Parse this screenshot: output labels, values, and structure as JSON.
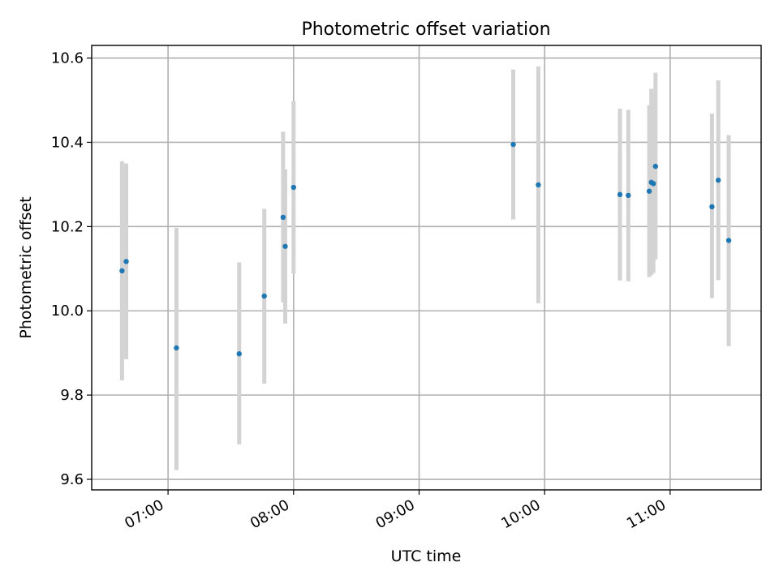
{
  "chart_data": {
    "type": "scatter",
    "title": "Photometric offset variation",
    "xlabel": "UTC time",
    "ylabel": "Photometric offset",
    "x_tick_labels": [
      "07:00",
      "08:00",
      "09:00",
      "10:00",
      "11:00"
    ],
    "x_ticks_minutes": [
      420,
      480,
      540,
      600,
      660
    ],
    "y_ticks": [
      9.6,
      9.8,
      10.0,
      10.2,
      10.4,
      10.6
    ],
    "y_tick_labels": [
      "9.6",
      "9.8",
      "10.0",
      "10.2",
      "10.4",
      "10.6"
    ],
    "xlim_minutes": [
      383.5,
      703.5
    ],
    "ylim": [
      9.575,
      10.63
    ],
    "grid": true,
    "point_color": "#1f77b4",
    "errorbar_color": "#d3d3d3",
    "points": [
      {
        "t": "06:38",
        "y": 10.095,
        "ylow": 9.835,
        "yhigh": 10.355
      },
      {
        "t": "06:40",
        "y": 10.117,
        "ylow": 9.885,
        "yhigh": 10.35
      },
      {
        "t": "07:04",
        "y": 9.912,
        "ylow": 9.622,
        "yhigh": 10.197
      },
      {
        "t": "07:34",
        "y": 9.898,
        "ylow": 9.683,
        "yhigh": 10.115
      },
      {
        "t": "07:46",
        "y": 10.035,
        "ylow": 9.827,
        "yhigh": 10.242
      },
      {
        "t": "07:55",
        "y": 10.222,
        "ylow": 10.02,
        "yhigh": 10.425
      },
      {
        "t": "07:56",
        "y": 10.153,
        "ylow": 9.97,
        "yhigh": 10.336
      },
      {
        "t": "08:00",
        "y": 10.293,
        "ylow": 10.088,
        "yhigh": 10.498
      },
      {
        "t": "09:45",
        "y": 10.395,
        "ylow": 10.217,
        "yhigh": 10.573
      },
      {
        "t": "09:57",
        "y": 10.299,
        "ylow": 10.018,
        "yhigh": 10.58
      },
      {
        "t": "10:36",
        "y": 10.276,
        "ylow": 10.072,
        "yhigh": 10.48
      },
      {
        "t": "10:40",
        "y": 10.274,
        "ylow": 10.07,
        "yhigh": 10.477
      },
      {
        "t": "10:50",
        "y": 10.284,
        "ylow": 10.08,
        "yhigh": 10.488
      },
      {
        "t": "10:51",
        "y": 10.305,
        "ylow": 10.085,
        "yhigh": 10.527
      },
      {
        "t": "10:52",
        "y": 10.302,
        "ylow": 10.09,
        "yhigh": 10.515
      },
      {
        "t": "10:53",
        "y": 10.343,
        "ylow": 10.122,
        "yhigh": 10.565
      },
      {
        "t": "11:20",
        "y": 10.247,
        "ylow": 10.03,
        "yhigh": 10.468
      },
      {
        "t": "11:23",
        "y": 10.31,
        "ylow": 10.073,
        "yhigh": 10.547
      },
      {
        "t": "11:28",
        "y": 10.167,
        "ylow": 9.916,
        "yhigh": 10.417
      }
    ]
  }
}
